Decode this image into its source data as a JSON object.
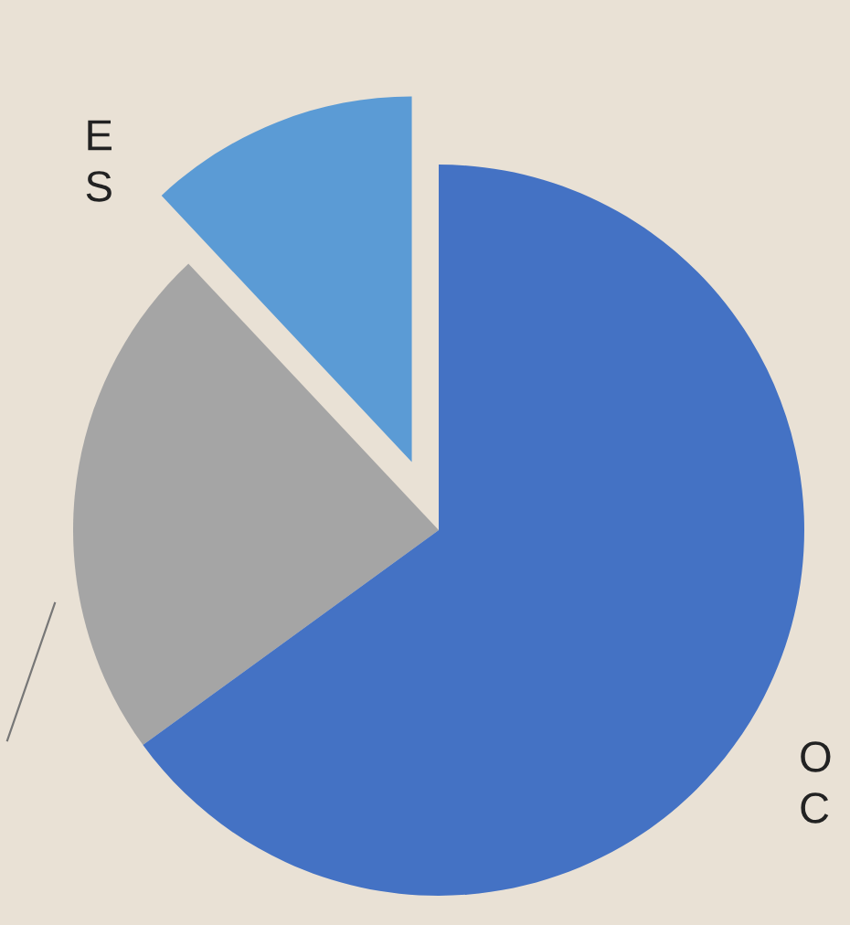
{
  "chart_data": {
    "type": "pie",
    "categories": [
      "E\nS",
      null,
      "O\nC"
    ],
    "values": [
      12,
      23,
      65
    ],
    "colors": [
      "#5b9bd5",
      "#a5a5a5",
      "#4472c4"
    ]
  }
}
